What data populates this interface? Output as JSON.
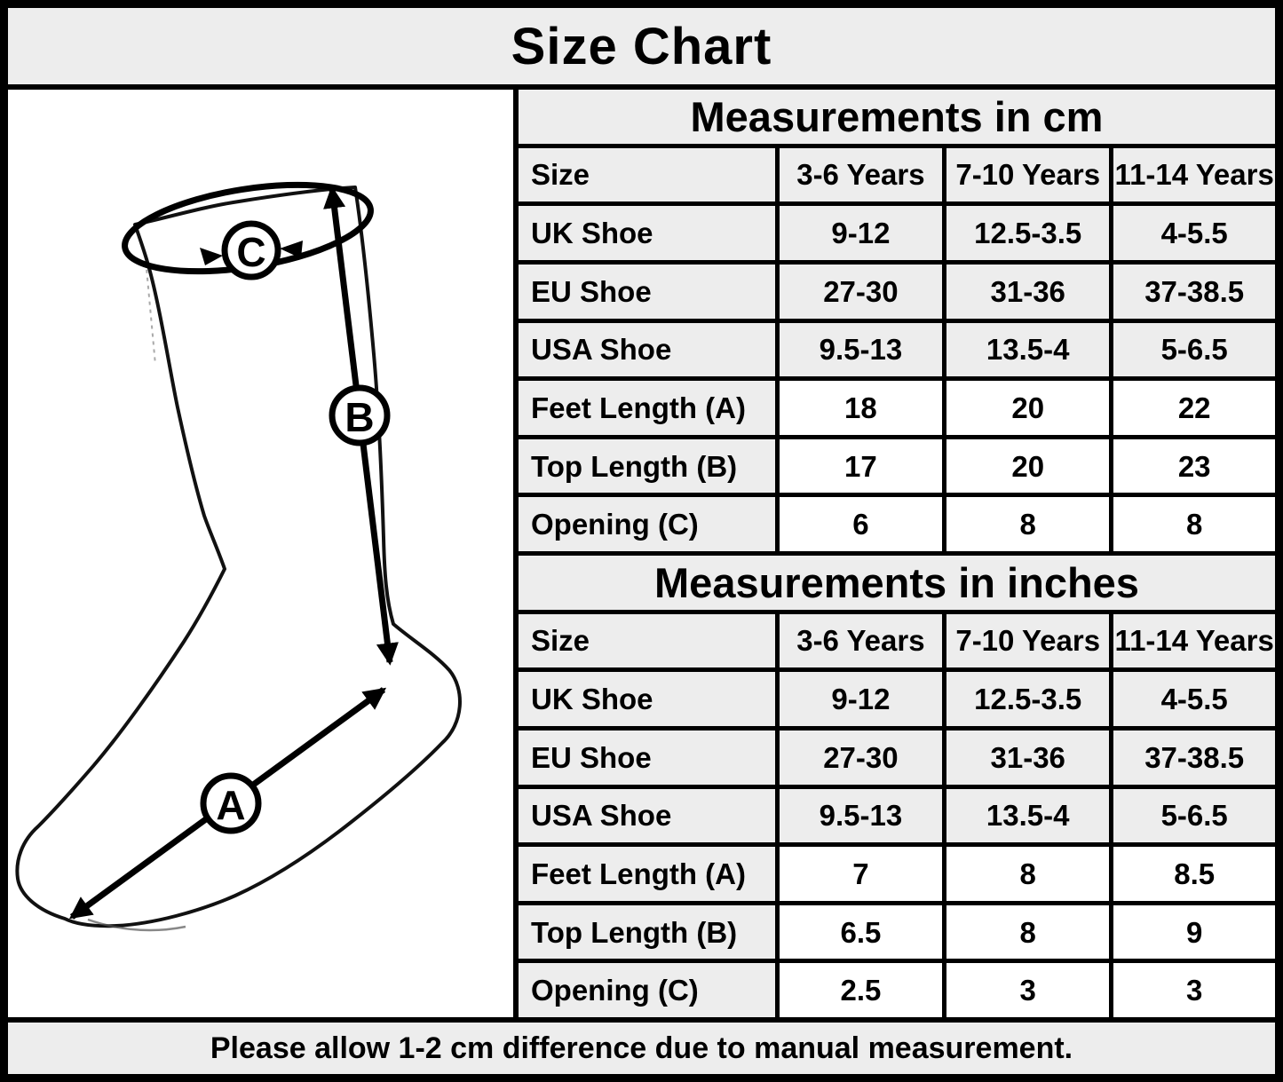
{
  "title": "Size Chart",
  "footer_note": "Please allow 1-2 cm difference due to manual measurement.",
  "diagram": {
    "label_a": "A",
    "label_b": "B",
    "label_c": "C"
  },
  "colors": {
    "cell_gray": "#ededed",
    "highlight_white": "#ffffff",
    "grid_black": "#000000"
  },
  "chart_data": [
    {
      "type": "table",
      "title": "Measurements in cm",
      "columns": [
        "Size",
        "3-6 Years",
        "7-10 Years",
        "11-14 Years"
      ],
      "rows": [
        [
          "UK Shoe",
          "9-12",
          "12.5-3.5",
          "4-5.5"
        ],
        [
          "EU Shoe",
          "27-30",
          "31-36",
          "37-38.5"
        ],
        [
          "USA Shoe",
          "9.5-13",
          "13.5-4",
          "5-6.5"
        ],
        [
          "Feet Length (A)",
          "18",
          "20",
          "22"
        ],
        [
          "Top Length (B)",
          "17",
          "20",
          "23"
        ],
        [
          "Opening (C)",
          "6",
          "8",
          "8"
        ]
      ]
    },
    {
      "type": "table",
      "title": "Measurements in inches",
      "columns": [
        "Size",
        "3-6 Years",
        "7-10 Years",
        "11-14 Years"
      ],
      "rows": [
        [
          "UK Shoe",
          "9-12",
          "12.5-3.5",
          "4-5.5"
        ],
        [
          "EU Shoe",
          "27-30",
          "31-36",
          "37-38.5"
        ],
        [
          "USA Shoe",
          "9.5-13",
          "13.5-4",
          "5-6.5"
        ],
        [
          "Feet Length (A)",
          "7",
          "8",
          "8.5"
        ],
        [
          "Top Length (B)",
          "6.5",
          "8",
          "9"
        ],
        [
          "Opening (C)",
          "2.5",
          "3",
          "3"
        ]
      ]
    }
  ]
}
